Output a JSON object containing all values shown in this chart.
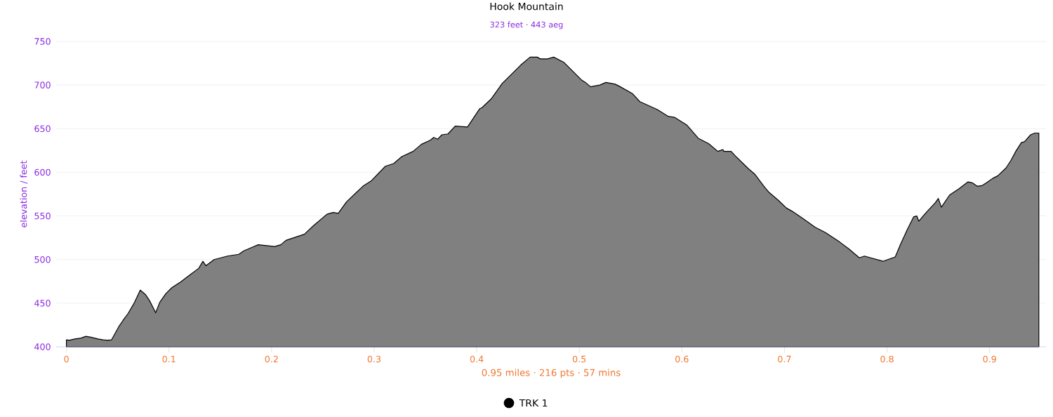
{
  "chart_data": {
    "type": "area",
    "title": "Hook Mountain",
    "subtitle": "323 feet · 443 aeg",
    "xlabel": "0.95 miles · 216 pts · 57 mins",
    "ylabel": "elevation / feet",
    "xlim": [
      -0.01,
      0.955
    ],
    "ylim": [
      400,
      750
    ],
    "xticks": [
      0,
      0.1,
      0.2,
      0.3,
      0.4,
      0.5,
      0.6,
      0.7,
      0.8,
      0.9
    ],
    "yticks": [
      400,
      450,
      500,
      550,
      600,
      650,
      700,
      750
    ],
    "grid": "y",
    "legend": "bottom",
    "series": [
      {
        "name": "TRK 1",
        "color": "#000000",
        "x": [
          0,
          0.003,
          0.008,
          0.014,
          0.019,
          0.024,
          0.031,
          0.036,
          0.04,
          0.044,
          0.051,
          0.055,
          0.06,
          0.066,
          0.072,
          0.077,
          0.081,
          0.087,
          0.091,
          0.097,
          0.103,
          0.111,
          0.12,
          0.129,
          0.133,
          0.136,
          0.144,
          0.157,
          0.168,
          0.173,
          0.181,
          0.187,
          0.203,
          0.209,
          0.214,
          0.232,
          0.241,
          0.254,
          0.26,
          0.265,
          0.273,
          0.289,
          0.297,
          0.311,
          0.319,
          0.327,
          0.338,
          0.346,
          0.355,
          0.358,
          0.362,
          0.366,
          0.372,
          0.379,
          0.391,
          0.403,
          0.405,
          0.414,
          0.425,
          0.443,
          0.452,
          0.459,
          0.462,
          0.469,
          0.475,
          0.485,
          0.502,
          0.506,
          0.511,
          0.52,
          0.526,
          0.535,
          0.54,
          0.552,
          0.559,
          0.576,
          0.587,
          0.593,
          0.605,
          0.616,
          0.626,
          0.635,
          0.64,
          0.641,
          0.648,
          0.652,
          0.665,
          0.671,
          0.68,
          0.685,
          0.694,
          0.702,
          0.708,
          0.718,
          0.73,
          0.74,
          0.754,
          0.763,
          0.773,
          0.778,
          0.796,
          0.808,
          0.813,
          0.82,
          0.826,
          0.829,
          0.831,
          0.836,
          0.839,
          0.847,
          0.85,
          0.853,
          0.861,
          0.87,
          0.879,
          0.883,
          0.888,
          0.893,
          0.897,
          0.903,
          0.908,
          0.916,
          0.921,
          0.926,
          0.931,
          0.934,
          0.94,
          0.944,
          0.948
        ],
        "values": [
          408,
          407.5,
          409,
          410,
          412,
          411,
          409,
          408,
          407.5,
          408,
          423,
          430,
          438,
          450,
          465,
          460,
          453,
          439,
          451,
          461,
          468,
          474,
          482,
          490,
          498,
          493,
          500,
          504,
          506,
          510,
          514,
          517,
          515,
          517,
          522,
          529,
          539,
          552,
          554,
          553,
          566,
          584,
          590,
          607,
          610,
          618,
          624,
          632,
          637,
          640,
          638,
          643,
          644,
          653,
          652,
          673,
          674,
          684,
          702,
          723,
          732,
          732,
          730,
          730,
          732,
          726,
          706,
          703,
          698,
          700,
          703,
          701,
          698,
          690,
          681,
          672,
          664,
          663,
          654,
          639,
          633,
          624,
          626,
          624,
          624,
          619,
          604,
          598,
          584,
          577,
          568,
          559,
          555,
          547,
          537,
          531,
          520,
          512,
          502,
          504,
          498,
          503,
          517,
          535,
          549,
          550,
          544,
          551,
          555,
          565,
          570,
          560,
          574,
          581,
          589,
          588,
          584,
          585,
          588,
          593,
          596,
          605,
          614,
          625,
          634,
          635,
          643,
          645,
          645
        ]
      }
    ]
  }
}
